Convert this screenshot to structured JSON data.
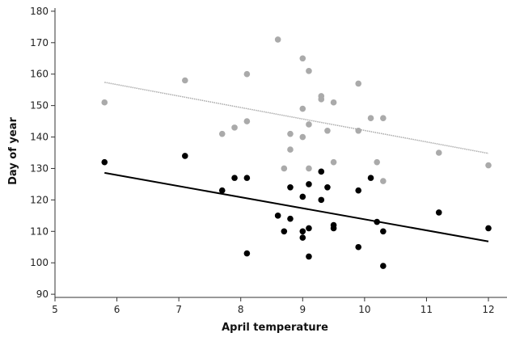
{
  "chart_data": {
    "type": "scatter",
    "title": "",
    "xlabel": "April temperature",
    "ylabel": "Day of year",
    "xlim": [
      5,
      12.3
    ],
    "ylim": [
      89,
      181
    ],
    "xticks": [
      5,
      6,
      7,
      8,
      9,
      10,
      11,
      12
    ],
    "yticks": [
      90,
      100,
      110,
      120,
      130,
      140,
      150,
      160,
      170,
      180
    ],
    "grid": false,
    "legend": "none",
    "series": [
      {
        "color": "#aaaaaa",
        "marker": "filled-circle",
        "points": [
          [
            5.8,
            151
          ],
          [
            7.1,
            158
          ],
          [
            7.7,
            141
          ],
          [
            7.9,
            143
          ],
          [
            8.1,
            145
          ],
          [
            8.1,
            160
          ],
          [
            8.6,
            171
          ],
          [
            8.7,
            130
          ],
          [
            8.8,
            136
          ],
          [
            8.8,
            141
          ],
          [
            9.0,
            149
          ],
          [
            9.0,
            140
          ],
          [
            9.0,
            165
          ],
          [
            9.1,
            161
          ],
          [
            9.1,
            144
          ],
          [
            9.1,
            130
          ],
          [
            9.3,
            153
          ],
          [
            9.3,
            152
          ],
          [
            9.4,
            142
          ],
          [
            9.5,
            151
          ],
          [
            9.5,
            132
          ],
          [
            9.9,
            157
          ],
          [
            9.9,
            142
          ],
          [
            10.1,
            146
          ],
          [
            10.2,
            132
          ],
          [
            10.3,
            146
          ],
          [
            10.3,
            126
          ],
          [
            11.2,
            135
          ],
          [
            12.0,
            131
          ]
        ],
        "trendline": {
          "from": [
            5.8,
            157.4
          ],
          "to": [
            12.0,
            134.8
          ],
          "color": "#aaaaaa",
          "style": "dotted"
        }
      },
      {
        "color": "#000000",
        "marker": "filled-circle",
        "points": [
          [
            5.8,
            132
          ],
          [
            7.1,
            134
          ],
          [
            7.7,
            123
          ],
          [
            7.9,
            127
          ],
          [
            8.1,
            127
          ],
          [
            8.1,
            103
          ],
          [
            8.6,
            115
          ],
          [
            8.7,
            110
          ],
          [
            8.8,
            124
          ],
          [
            8.8,
            114
          ],
          [
            9.0,
            121
          ],
          [
            9.0,
            110
          ],
          [
            9.0,
            108
          ],
          [
            9.1,
            125
          ],
          [
            9.1,
            111
          ],
          [
            9.1,
            102
          ],
          [
            9.3,
            129
          ],
          [
            9.3,
            120
          ],
          [
            9.4,
            124
          ],
          [
            9.5,
            112
          ],
          [
            9.5,
            111
          ],
          [
            9.9,
            123
          ],
          [
            9.9,
            105
          ],
          [
            10.1,
            127
          ],
          [
            10.2,
            113
          ],
          [
            10.3,
            110
          ],
          [
            10.3,
            99
          ],
          [
            11.2,
            116
          ],
          [
            12.0,
            111
          ]
        ],
        "trendline": {
          "from": [
            5.8,
            128.6
          ],
          "to": [
            12.0,
            106.8
          ],
          "color": "#000000",
          "style": "solid"
        }
      }
    ]
  }
}
